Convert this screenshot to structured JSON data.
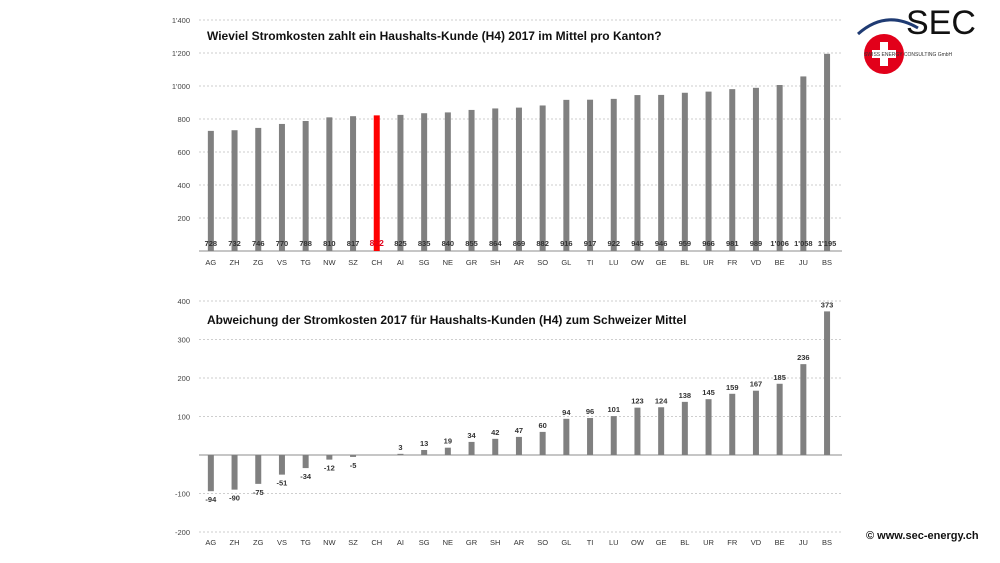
{
  "logo": {
    "text": "SEC",
    "subtitle": "SWISS ENERGY CONSULTING GmbH",
    "cross_color": "#e2001a",
    "arc_color": "#1f3b73"
  },
  "copyright": "© www.sec-energy.ch",
  "colors": {
    "bar": "#808080",
    "highlight": "#ff0000",
    "highlight_label": "#e2001a"
  },
  "chart_data": [
    {
      "type": "bar",
      "title": "Wieviel Stromkosten zahlt ein Haushalts-Kunde (H4) 2017 im Mittel pro Kanton?",
      "categories": [
        "AG",
        "ZH",
        "ZG",
        "VS",
        "TG",
        "NW",
        "SZ",
        "CH",
        "AI",
        "SG",
        "NE",
        "GR",
        "SH",
        "AR",
        "SO",
        "GL",
        "TI",
        "LU",
        "OW",
        "GE",
        "BL",
        "UR",
        "FR",
        "VD",
        "BE",
        "JU",
        "BS"
      ],
      "values": [
        728,
        732,
        746,
        770,
        788,
        810,
        817,
        822,
        825,
        835,
        840,
        855,
        864,
        869,
        882,
        916,
        917,
        922,
        945,
        946,
        959,
        966,
        981,
        989,
        1006,
        1058,
        1195
      ],
      "data_labels": [
        "728",
        "732",
        "746",
        "770",
        "788",
        "810",
        "817",
        "822",
        "825",
        "835",
        "840",
        "855",
        "864",
        "869",
        "882",
        "916",
        "917",
        "922",
        "945",
        "946",
        "959",
        "966",
        "981",
        "989",
        "1'006",
        "1'058",
        "1'195"
      ],
      "highlight_category": "CH",
      "ylim": [
        0,
        1400
      ],
      "yticks": [
        200,
        400,
        600,
        800,
        1000,
        1200,
        1400
      ],
      "ytick_labels": [
        "200",
        "400",
        "600",
        "800",
        "1'000",
        "1'200",
        "1'400"
      ],
      "xlabel": "",
      "ylabel": "",
      "grid": true,
      "legend": "none"
    },
    {
      "type": "bar",
      "title": "Abweichung der Stromkosten 2017 für Haushalts-Kunden (H4) zum Schweizer Mittel",
      "categories": [
        "AG",
        "ZH",
        "ZG",
        "VS",
        "TG",
        "NW",
        "SZ",
        "CH",
        "AI",
        "SG",
        "NE",
        "GR",
        "SH",
        "AR",
        "SO",
        "GL",
        "TI",
        "LU",
        "OW",
        "GE",
        "BL",
        "UR",
        "FR",
        "VD",
        "BE",
        "JU",
        "BS"
      ],
      "values": [
        -94,
        -90,
        -75,
        -51,
        -34,
        -12,
        -5,
        0,
        3,
        13,
        19,
        34,
        42,
        47,
        60,
        94,
        96,
        101,
        123,
        124,
        138,
        145,
        159,
        167,
        185,
        236,
        373
      ],
      "data_labels": [
        "-94",
        "-90",
        "-75",
        "-51",
        "-34",
        "-12",
        "-5",
        "",
        "3",
        "13",
        "19",
        "34",
        "42",
        "47",
        "60",
        "94",
        "96",
        "101",
        "123",
        "124",
        "138",
        "145",
        "159",
        "167",
        "185",
        "236",
        "373"
      ],
      "ylim": [
        -200,
        400
      ],
      "yticks": [
        -200,
        -100,
        0,
        100,
        200,
        300,
        400
      ],
      "ytick_labels": [
        "-200",
        "-100",
        "",
        "100",
        "200",
        "300",
        "400"
      ],
      "xlabel": "",
      "ylabel": "",
      "grid": true,
      "legend": "none"
    }
  ]
}
